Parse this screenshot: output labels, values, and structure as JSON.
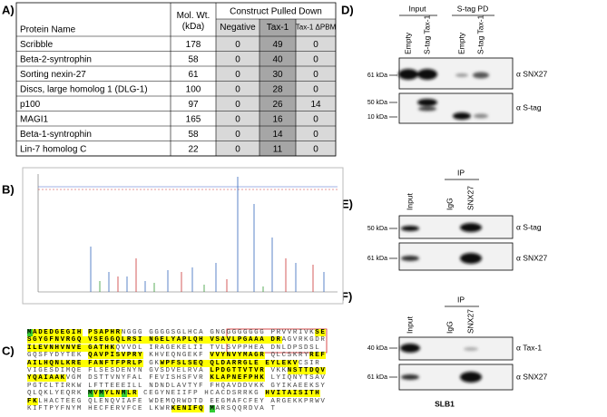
{
  "panels": [
    "A)",
    "B)",
    "C)",
    "D)",
    "E)",
    "F)"
  ],
  "table": {
    "header": [
      "Protein Name",
      "Mol. Wt. (kDa)"
    ],
    "group": "Construct Pulled Down",
    "columns": [
      "Negative",
      "Tax-1",
      "Tax-1 ΔPBM"
    ],
    "column_colors": [
      "#d9d9d9",
      "#a6a6a6",
      "#d9d9d9"
    ],
    "rows": [
      {
        "cells": [
          "Scribble",
          178,
          0,
          49,
          0
        ]
      },
      {
        "cells": [
          "Beta-2-syntrophin",
          58,
          0,
          40,
          0
        ]
      },
      {
        "cells": [
          "Sorting nexin-27",
          61,
          0,
          30,
          0
        ],
        "color": "#e00000"
      },
      {
        "cells": [
          "Discs, large homolog 1 (DLG-1)",
          100,
          0,
          28,
          0
        ]
      },
      {
        "cells": [
          "p100",
          97,
          0,
          26,
          14
        ]
      },
      {
        "cells": [
          "MAGI1",
          165,
          0,
          16,
          0
        ]
      },
      {
        "cells": [
          "Beta-1-syntrophin",
          58,
          0,
          14,
          0
        ]
      },
      {
        "cells": [
          "Lin-7 homolog C",
          22,
          0,
          11,
          0
        ]
      }
    ]
  },
  "sequence": {
    "lines": [
      [
        {
          "text": "M",
          "highlight": "#33cc33"
        },
        {
          "text": "ADEDGEGIH",
          "highlight": "#ffff00"
        },
        {
          "text": " "
        },
        {
          "text": "PSAPHR",
          "highlight": "#ffff00"
        },
        {
          "text": "NGGG GGGGSGLHCA GNGGGGGGGG PRVVRIVK"
        },
        {
          "text": "SE",
          "highlight": "#ffff00"
        }
      ],
      [
        {
          "text": "SGYGFNVRGQ VSEGGQLRSI NGELYAPLQH VSAVLPGAAA DR",
          "highlight": "#ffff00"
        },
        {
          "text": "AGVRKGDR"
        }
      ],
      [
        {
          "text": "ILEVNHVNVE GATHK",
          "highlight": "#ffff00"
        },
        {
          "text": "QVVDL IRAGEKELII TVLSVPPHEA DNLDPSDSL"
        }
      ],
      [
        {
          "text": "GQSFYDYTEK "
        },
        {
          "text": "QAVPISVPRY",
          "highlight": "#ffff00"
        },
        {
          "text": " KHVEQNGEKF "
        },
        {
          "text": "VVYNVYMAGR",
          "highlight": "#ffff00"
        },
        {
          "text": " QLCSKRY"
        },
        {
          "text": "REF",
          "highlight": "#ffff00"
        }
      ],
      [
        {
          "text": "AILHQNLKRE FANFTFPRLP",
          "highlight": "#ffff00"
        },
        {
          "text": " GK"
        },
        {
          "text": "WPFSLSEQ QLDARRGLE EYLEKV",
          "highlight": "#ffff00"
        },
        {
          "text": "CSIR"
        }
      ],
      [
        {
          "text": "VIGESDIMQE FLSESDENYN GVSDVELRVA "
        },
        {
          "text": "LPDGTTVTVR",
          "highlight": "#ffff00"
        },
        {
          "text": " VKK"
        },
        {
          "text": "NSTTDQV",
          "highlight": "#ffff00"
        }
      ],
      [
        {
          "text": "YQAIAAK",
          "highlight": "#ffff00"
        },
        {
          "text": "VGM DSTTVNYFAL FEVISHSFVR "
        },
        {
          "text": "KLAPNEFPHK",
          "highlight": "#ffff00"
        },
        {
          "text": " LYIQNYTSAV"
        }
      ],
      [
        {
          "text": "PGTCLTIRKW LFTTEEEILL NDNDLAVTYF FHQAVDDVKK GYIKAEEKSY"
        }
      ],
      [
        {
          "text": "QLQKLYEQRK "
        },
        {
          "text": "M",
          "highlight": "#33cc33"
        },
        {
          "text": "V",
          "highlight": "#ffff00"
        },
        {
          "text": "M",
          "highlight": "#33cc33"
        },
        {
          "text": "YLN",
          "highlight": "#ffff00"
        },
        {
          "text": "M",
          "highlight": "#33cc33"
        },
        {
          "text": "LR",
          "highlight": "#ffff00"
        },
        {
          "text": " CEGYNEIIFP HCACDSRRKG "
        },
        {
          "text": "HVITAISITH",
          "highlight": "#ffff00"
        }
      ],
      [
        {
          "text": "FK",
          "highlight": "#ffff00"
        },
        {
          "text": "LHACTEEG QLENQVIAFE WDEMQRWDTD EEGMAFCFEY ARGEKKPRWV"
        }
      ],
      [
        {
          "text": "KIFTPYFNYM HECFERVFCE LKWR"
        },
        {
          "text": "KENIFQ",
          "highlight": "#ffff00"
        },
        {
          "text": " "
        },
        {
          "text": "M",
          "highlight": "#33cc33"
        },
        {
          "text": "ARSQQRDVA T"
        }
      ]
    ]
  },
  "blot_d": {
    "groups": [
      "Input",
      "S-tag PD"
    ],
    "lanes": [
      "Empty",
      "S-tag Tax-1",
      "Empty",
      "S-tag Tax-1"
    ],
    "markers": [
      "61 kDa",
      "50 kDa",
      "10 kDa"
    ],
    "antibodies": [
      "α SNX27",
      "α S-tag"
    ]
  },
  "blot_e": {
    "group": "IP",
    "lanes": [
      "Input",
      "IgG",
      "SNX27"
    ],
    "markers": [
      "50 kDa",
      "61 kDa"
    ],
    "antibodies": [
      "α S-tag",
      "α SNX27"
    ]
  },
  "blot_f": {
    "group": "IP",
    "lanes": [
      "Input",
      "IgG",
      "SNX27"
    ],
    "markers": [
      "40 kDa",
      "61 kDa"
    ],
    "antibodies": [
      "α Tax-1",
      "α SNX27"
    ],
    "cell_line": "SLB1"
  }
}
